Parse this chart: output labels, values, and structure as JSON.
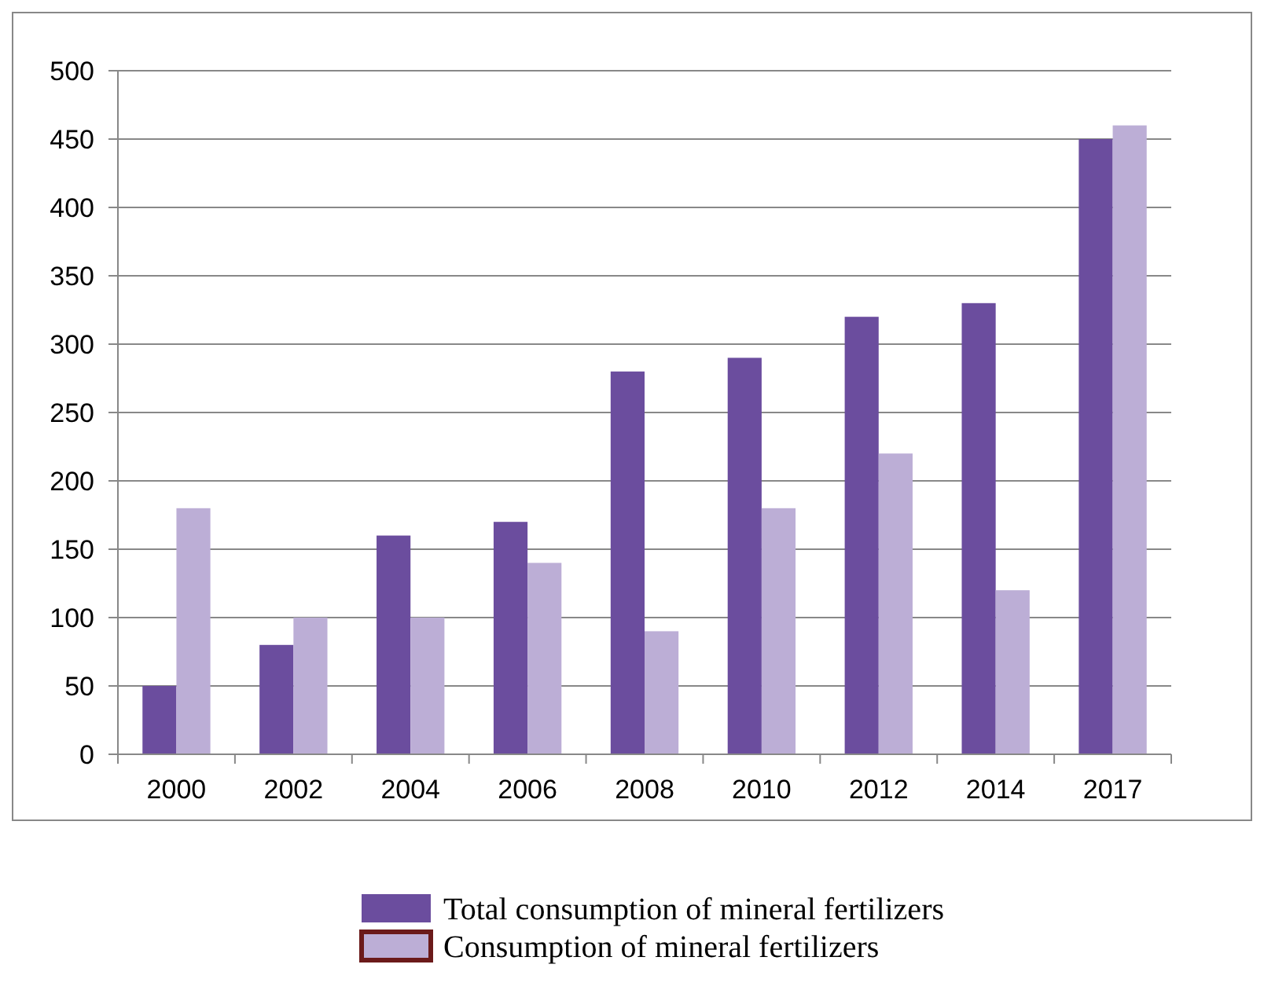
{
  "chart_data": {
    "type": "bar",
    "categories": [
      "2000",
      "2002",
      "2004",
      "2006",
      "2008",
      "2010",
      "2012",
      "2014",
      "2017"
    ],
    "series": [
      {
        "name": "Total consumption of mineral fertilizers",
        "color": "#6b4d9e",
        "values": [
          50,
          80,
          160,
          170,
          280,
          290,
          320,
          330,
          450
        ]
      },
      {
        "name": "Consumption of mineral fertilizers",
        "color": "#bcaed6",
        "values": [
          180,
          100,
          100,
          140,
          90,
          180,
          220,
          120,
          460
        ]
      }
    ],
    "ylim": [
      0,
      500
    ],
    "yticks": [
      0,
      50,
      100,
      150,
      200,
      250,
      300,
      350,
      400,
      450,
      500
    ],
    "grid": "y",
    "legend": "bottom"
  }
}
